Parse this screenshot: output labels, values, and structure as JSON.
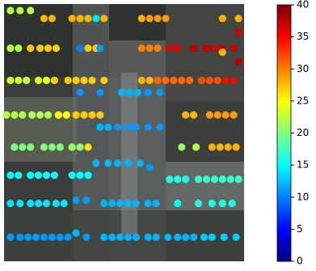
{
  "chart_data": {
    "type": "scatter",
    "colormap": "jet",
    "xlim": [
      0,
      300
    ],
    "ylim": [
      320,
      0
    ],
    "clim": [
      0,
      40
    ],
    "cticks": [
      0,
      5,
      10,
      15,
      20,
      25,
      30,
      35,
      40
    ],
    "x": [
      8,
      20,
      33,
      50,
      60,
      85,
      95,
      105,
      115,
      125,
      172,
      182,
      192,
      202,
      273,
      293,
      293,
      8,
      18,
      33,
      45,
      55,
      65,
      95,
      105,
      115,
      120,
      172,
      182,
      192,
      207,
      217,
      237,
      252,
      262,
      272,
      287,
      273,
      293,
      8,
      18,
      28,
      43,
      53,
      63,
      80,
      90,
      100,
      110,
      125,
      172,
      182,
      192,
      202,
      212,
      222,
      232,
      247,
      257,
      267,
      277,
      287,
      95,
      120,
      147,
      157,
      167,
      180,
      195,
      3,
      13,
      23,
      35,
      45,
      55,
      68,
      78,
      90,
      100,
      110,
      120,
      227,
      237,
      257,
      267,
      277,
      287,
      120,
      130,
      142,
      155,
      165,
      180,
      195,
      13,
      23,
      33,
      50,
      60,
      70,
      85,
      95,
      105,
      222,
      240,
      260,
      270,
      280,
      290,
      115,
      130,
      142,
      155,
      170,
      182,
      8,
      18,
      33,
      43,
      53,
      63,
      85,
      95,
      105,
      207,
      217,
      227,
      243,
      253,
      263,
      273,
      283,
      293,
      90,
      103,
      8,
      20,
      33,
      43,
      53,
      65,
      75,
      125,
      135,
      145,
      155,
      165,
      180,
      190,
      217,
      243,
      260,
      273,
      285,
      90,
      8,
      20,
      30,
      40,
      50,
      60,
      70,
      80,
      103,
      125,
      135,
      145,
      155,
      165,
      180,
      190,
      205,
      217,
      227,
      237,
      250,
      260,
      275,
      290
    ],
    "y": [
      8,
      8,
      8,
      18,
      18,
      18,
      18,
      18,
      18,
      18,
      18,
      18,
      18,
      18,
      18,
      18,
      35,
      55,
      55,
      55,
      55,
      55,
      55,
      55,
      55,
      55,
      55,
      55,
      55,
      55,
      55,
      55,
      55,
      55,
      55,
      55,
      55,
      60,
      72,
      95,
      95,
      95,
      95,
      95,
      95,
      95,
      95,
      95,
      95,
      95,
      95,
      95,
      95,
      95,
      95,
      95,
      95,
      95,
      95,
      95,
      95,
      95,
      110,
      110,
      110,
      110,
      110,
      110,
      110,
      138,
      138,
      138,
      138,
      138,
      138,
      138,
      138,
      138,
      138,
      138,
      138,
      138,
      138,
      138,
      138,
      138,
      138,
      153,
      153,
      153,
      153,
      153,
      153,
      153,
      178,
      178,
      178,
      178,
      178,
      178,
      178,
      178,
      178,
      178,
      178,
      178,
      178,
      178,
      178,
      198,
      198,
      198,
      198,
      198,
      203,
      213,
      213,
      213,
      213,
      213,
      213,
      213,
      213,
      213,
      218,
      218,
      218,
      218,
      218,
      218,
      218,
      218,
      218,
      244,
      244,
      248,
      248,
      248,
      248,
      248,
      248,
      248,
      248,
      248,
      248,
      248,
      248,
      248,
      248,
      248,
      248,
      248,
      248,
      248,
      285,
      290,
      290,
      290,
      290,
      290,
      290,
      290,
      290,
      290,
      290,
      290,
      290,
      290,
      290,
      290,
      290,
      290,
      290,
      290,
      290,
      290,
      290,
      290,
      290
    ],
    "values": [
      22,
      22,
      22,
      28,
      28,
      28,
      28,
      28,
      14,
      28,
      28,
      29,
      29,
      29,
      28,
      28,
      37,
      22,
      22,
      27,
      27,
      27,
      27,
      10,
      27,
      27,
      11,
      30,
      30,
      30,
      36,
      36,
      37,
      37,
      37,
      37,
      37,
      28,
      38,
      23,
      23,
      23,
      24,
      24,
      27,
      27,
      27,
      27,
      27,
      27,
      28,
      28,
      31,
      31,
      31,
      31,
      31,
      32,
      32,
      32,
      35,
      35,
      11,
      11,
      12,
      12,
      12,
      11,
      11,
      22,
      22,
      22,
      22,
      22,
      22,
      25,
      25,
      27,
      27,
      27,
      27,
      28,
      28,
      29,
      29,
      29,
      29,
      12,
      12,
      11,
      11,
      11,
      11,
      11,
      20,
      20,
      20,
      20,
      20,
      20,
      21,
      21,
      26,
      21,
      22,
      28,
      28,
      28,
      28,
      12,
      12,
      12,
      12,
      12,
      11,
      15,
      15,
      15,
      15,
      15,
      15,
      15,
      15,
      15,
      16,
      16,
      16,
      17,
      17,
      17,
      17,
      17,
      17,
      11,
      11,
      14,
      14,
      14,
      14,
      14,
      14,
      14,
      12,
      12,
      12,
      12,
      12,
      12,
      12,
      15,
      16,
      16,
      16,
      16,
      12,
      11,
      11,
      11,
      11,
      11,
      11,
      11,
      11,
      11,
      12,
      12,
      12,
      12,
      12,
      12,
      12,
      12,
      12,
      12,
      12,
      13,
      13,
      13,
      13
    ]
  }
}
